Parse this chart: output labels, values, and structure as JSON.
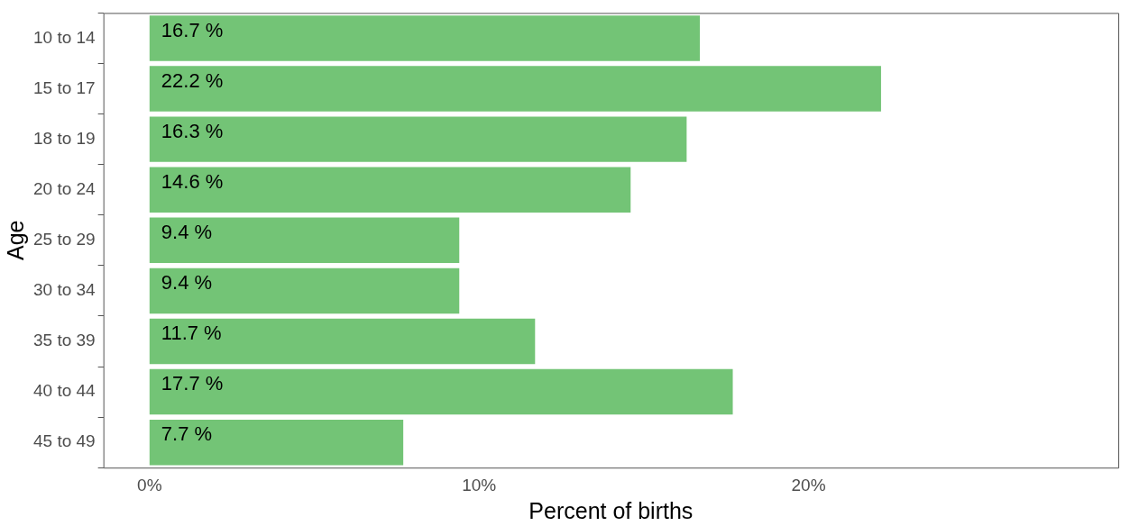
{
  "chart_data": {
    "type": "bar",
    "orientation": "horizontal",
    "xlabel": "Percent of births",
    "ylabel": "Age",
    "categories": [
      "10 to 14",
      "15 to 17",
      "18 to 19",
      "20 to 24",
      "25 to 29",
      "30 to 34",
      "35 to 39",
      "40 to 44",
      "45 to 49"
    ],
    "values": [
      16.7,
      22.2,
      16.3,
      14.6,
      9.4,
      9.4,
      11.7,
      17.7,
      7.7
    ],
    "value_labels": [
      "16.7 %",
      "22.2 %",
      "16.3 %",
      "14.6 %",
      "9.4 %",
      "9.4 %",
      "11.7 %",
      "17.7 %",
      "7.7 %"
    ],
    "color": "#73c476",
    "xlim": [
      -1.4,
      29.4
    ],
    "xticks": [
      {
        "value": 0,
        "label": "0%"
      },
      {
        "value": 10,
        "label": "10%"
      },
      {
        "value": 20,
        "label": "20%"
      }
    ],
    "grid": false,
    "legend": false
  }
}
